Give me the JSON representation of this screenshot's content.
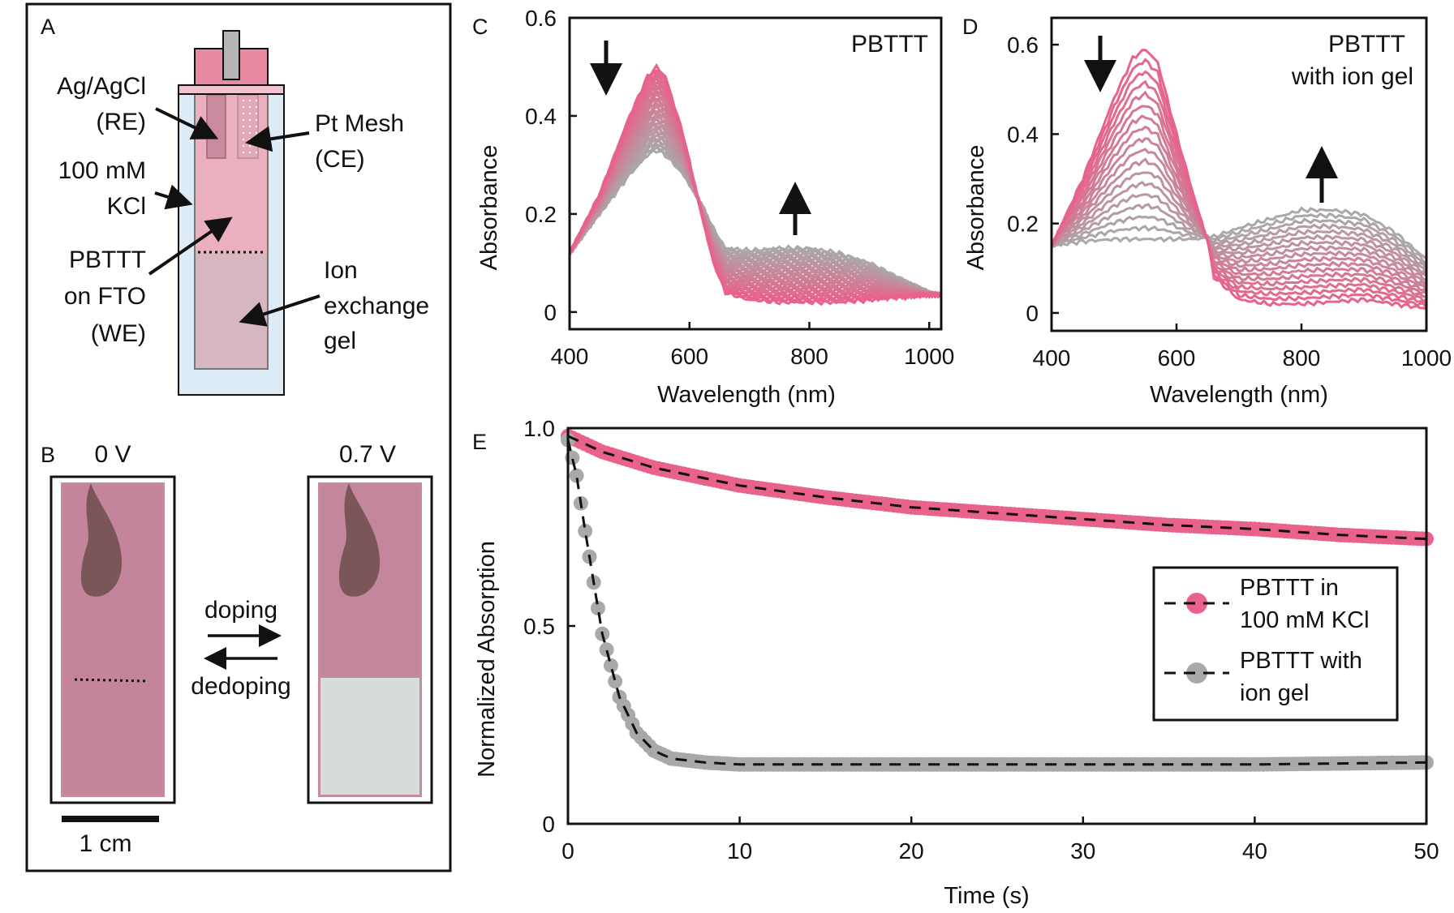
{
  "panels": {
    "A": {
      "letter": "A",
      "labels": {
        "re_line1": "Ag/AgCl",
        "re_line2": "(RE)",
        "ce_line1": "Pt Mesh",
        "ce_line2": "(CE)",
        "kcl_line1": "100 mM",
        "kcl_line2": "KCl",
        "we_line1": "PBTTT",
        "we_line2": "on FTO",
        "we_line3": "(WE)",
        "gel_line1": "Ion",
        "gel_line2": "exchange",
        "gel_line3": "gel"
      }
    },
    "B": {
      "letter": "B",
      "left_voltage": "0 V",
      "right_voltage": "0.7 V",
      "doping": "doping",
      "dedoping": "dedoping",
      "scale_bar": "1 cm"
    },
    "C": {
      "letter": "C",
      "tag": "PBTTT"
    },
    "D": {
      "letter": "D",
      "tag_line1": "PBTTT",
      "tag_line2": "with ion gel"
    },
    "E": {
      "letter": "E"
    }
  },
  "colors": {
    "pink": "#e8628a",
    "gray": "#a9a9a9",
    "cell_pink": "#eab0c0",
    "cell_blue": "#dcebf6",
    "gel": "#d6b7c0"
  },
  "chart_data": [
    {
      "panel": "C",
      "type": "line",
      "xlabel": "Wavelength (nm)",
      "ylabel": "Absorbance",
      "xlim": [
        400,
        1020
      ],
      "ylim": [
        -0.035,
        0.6
      ],
      "xticks": [
        400,
        600,
        800,
        1000
      ],
      "yticks": [
        0,
        0.2,
        0.4,
        0.6
      ],
      "ytick_labels": [
        "0",
        "0.2",
        "0.4",
        "0.6"
      ],
      "series_count": 40,
      "first_spectrum": {
        "x": [
          400,
          450,
          500,
          530,
          545,
          560,
          590,
          620,
          640,
          660,
          700,
          750,
          800,
          850,
          900,
          950,
          1000,
          1020
        ],
        "y": [
          0.12,
          0.24,
          0.4,
          0.48,
          0.5,
          0.48,
          0.36,
          0.2,
          0.1,
          0.04,
          0.025,
          0.02,
          0.02,
          0.02,
          0.025,
          0.03,
          0.035,
          0.035
        ]
      },
      "last_spectrum": {
        "x": [
          400,
          450,
          500,
          530,
          545,
          560,
          590,
          620,
          640,
          660,
          700,
          750,
          800,
          850,
          900,
          950,
          1000,
          1020
        ],
        "y": [
          0.12,
          0.2,
          0.28,
          0.32,
          0.33,
          0.32,
          0.28,
          0.22,
          0.17,
          0.13,
          0.125,
          0.13,
          0.13,
          0.12,
          0.1,
          0.07,
          0.04,
          0.035
        ]
      }
    },
    {
      "panel": "D",
      "type": "line",
      "xlabel": "Wavelength (nm)",
      "ylabel": "Absorbance",
      "xlim": [
        400,
        1000
      ],
      "ylim": [
        -0.04,
        0.66
      ],
      "xticks": [
        400,
        600,
        800,
        1000
      ],
      "yticks": [
        0,
        0.2,
        0.4,
        0.6
      ],
      "ytick_labels": [
        "0",
        "0.2",
        "0.4",
        "0.6"
      ],
      "series_count": 18,
      "first_spectrum": {
        "x": [
          400,
          450,
          500,
          530,
          550,
          570,
          600,
          630,
          650,
          660,
          700,
          750,
          800,
          850,
          900,
          950,
          1000
        ],
        "y": [
          0.15,
          0.3,
          0.48,
          0.57,
          0.59,
          0.56,
          0.4,
          0.25,
          0.16,
          0.08,
          0.03,
          0.02,
          0.02,
          0.025,
          0.03,
          0.02,
          0.01
        ]
      },
      "last_spectrum": {
        "x": [
          400,
          450,
          500,
          530,
          550,
          570,
          600,
          630,
          650,
          660,
          700,
          750,
          800,
          850,
          900,
          950,
          1000
        ],
        "y": [
          0.15,
          0.16,
          0.165,
          0.165,
          0.165,
          0.165,
          0.165,
          0.165,
          0.17,
          0.17,
          0.19,
          0.21,
          0.23,
          0.23,
          0.22,
          0.18,
          0.12
        ]
      }
    },
    {
      "panel": "E",
      "type": "scatter",
      "xlabel": "Time (s)",
      "ylabel": "Normalized Absorption",
      "xlim": [
        0,
        50
      ],
      "ylim": [
        0,
        1.0
      ],
      "xticks": [
        0,
        10,
        20,
        30,
        40,
        50
      ],
      "yticks": [
        0,
        0.5,
        1.0
      ],
      "ytick_labels": [
        "0",
        "0.5",
        "1.0"
      ],
      "legend_position": "center-right",
      "series": [
        {
          "name": "PBTTT in 100 mM KCl",
          "legend_line1": "PBTTT in",
          "legend_line2": "100 mM KCl",
          "color": "#e8628a",
          "x": [
            0,
            2,
            5,
            10,
            15,
            20,
            25,
            30,
            35,
            40,
            45,
            50
          ],
          "y": [
            0.98,
            0.94,
            0.9,
            0.855,
            0.825,
            0.8,
            0.785,
            0.77,
            0.755,
            0.745,
            0.73,
            0.72
          ]
        },
        {
          "name": "PBTTT with ion gel",
          "legend_line1": "PBTTT with",
          "legend_line2": "ion gel",
          "color": "#a9a9a9",
          "x": [
            0,
            0.5,
            1,
            2,
            3,
            4,
            5,
            6,
            8,
            10,
            20,
            30,
            40,
            50
          ],
          "y": [
            0.97,
            0.88,
            0.74,
            0.48,
            0.32,
            0.23,
            0.185,
            0.165,
            0.155,
            0.15,
            0.15,
            0.15,
            0.15,
            0.155
          ]
        }
      ]
    }
  ]
}
